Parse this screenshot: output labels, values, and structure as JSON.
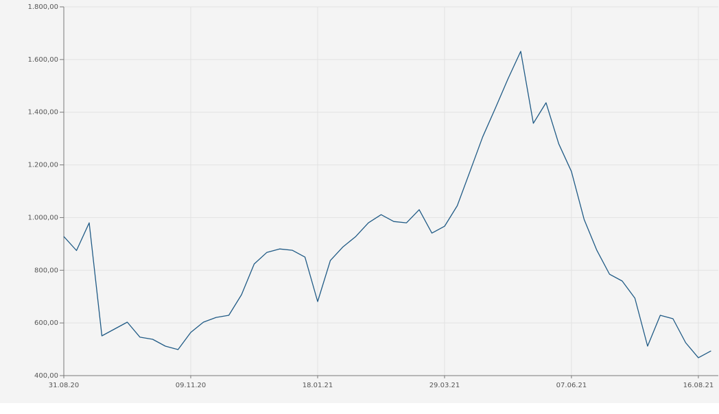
{
  "chart_data": {
    "type": "line",
    "x": [
      "31.08.20",
      "07.09.20",
      "14.09.20",
      "21.09.20",
      "28.09.20",
      "05.10.20",
      "12.10.20",
      "19.10.20",
      "26.10.20",
      "02.11.20",
      "09.11.20",
      "16.11.20",
      "23.11.20",
      "30.11.20",
      "07.12.20",
      "14.12.20",
      "21.12.20",
      "28.12.20",
      "04.01.21",
      "11.01.21",
      "18.01.21",
      "25.01.21",
      "01.02.21",
      "08.02.21",
      "15.02.21",
      "22.02.21",
      "01.03.21",
      "08.03.21",
      "15.03.21",
      "22.03.21",
      "29.03.21",
      "05.04.21",
      "12.04.21",
      "19.04.21",
      "26.04.21",
      "03.05.21",
      "10.05.21",
      "17.05.21",
      "24.05.21",
      "31.05.21",
      "07.06.21",
      "14.06.21",
      "21.06.21",
      "28.06.21",
      "05.07.21",
      "12.07.21",
      "19.07.21",
      "26.07.21",
      "02.08.21",
      "09.08.21",
      "16.08.21",
      "23.08.21"
    ],
    "series": [
      {
        "color": "#1f5a85",
        "values": [
          928,
          875,
          980,
          551,
          577,
          603,
          546,
          538,
          512,
          499,
          564,
          603,
          621,
          629,
          707,
          824,
          868,
          881,
          876,
          850,
          681,
          837,
          889,
          928,
          980,
          1011,
          985,
          980,
          1030,
          941,
          967,
          1045,
          1175,
          1306,
          1415,
          1527,
          1631,
          1358,
          1436,
          1280,
          1175,
          993,
          876,
          785,
          759,
          694,
          512,
          629,
          616,
          525,
          468,
          494
        ]
      }
    ],
    "xlim": [
      "31.08.20",
      "27.08.21"
    ],
    "xticks": [
      "31.08.20",
      "09.11.20",
      "18.01.21",
      "29.03.21",
      "07.06.21",
      "16.08.21"
    ],
    "ylim": [
      400,
      1800
    ],
    "yticks": [
      {
        "value": 400,
        "label": "400,00"
      },
      {
        "value": 600,
        "label": "600,00"
      },
      {
        "value": 800,
        "label": "800,00"
      },
      {
        "value": 1000,
        "label": "1.000,00"
      },
      {
        "value": 1200,
        "label": "1.200,00"
      },
      {
        "value": 1400,
        "label": "1.400,00"
      },
      {
        "value": 1600,
        "label": "1.600,00"
      },
      {
        "value": 1800,
        "label": "1.800,00"
      }
    ],
    "grid": true
  }
}
